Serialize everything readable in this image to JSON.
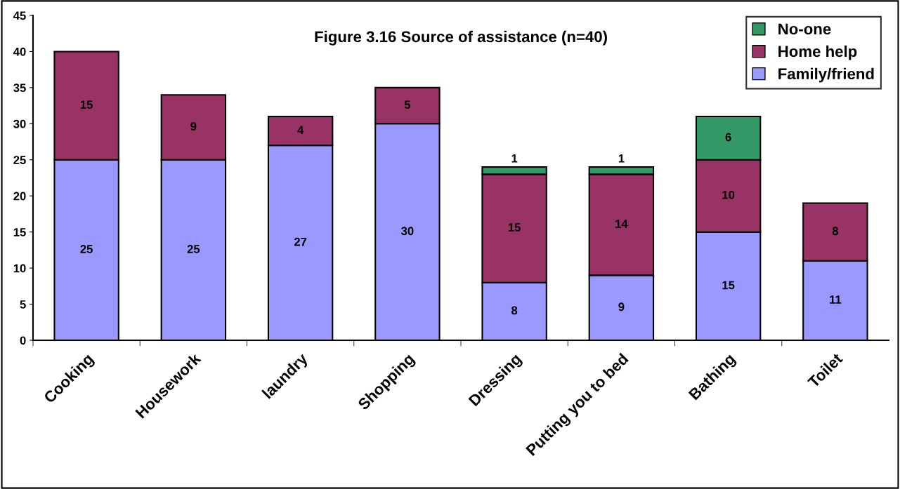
{
  "chart_data": {
    "type": "bar",
    "stacked": true,
    "title": "Figure 3.16 Source of assistance (n=40)",
    "categories": [
      "Cooking",
      "Housework",
      "laundry",
      "Shopping",
      "Dressing",
      "Putting you to bed",
      "Bathing",
      "Toilet"
    ],
    "series": [
      {
        "name": "Family/friend",
        "color": "#9999ff",
        "values": [
          25,
          25,
          27,
          30,
          8,
          9,
          15,
          11
        ]
      },
      {
        "name": "Home help",
        "color": "#993366",
        "values": [
          15,
          9,
          4,
          5,
          15,
          14,
          10,
          8
        ]
      },
      {
        "name": "No-one",
        "color": "#339966",
        "values": [
          null,
          null,
          null,
          null,
          1,
          1,
          6,
          null
        ]
      }
    ],
    "ylim": [
      0,
      45
    ],
    "yticks": [
      0,
      5,
      10,
      15,
      20,
      25,
      30,
      35,
      40,
      45
    ],
    "data_labels": true,
    "legend": "top right",
    "grid": false
  }
}
